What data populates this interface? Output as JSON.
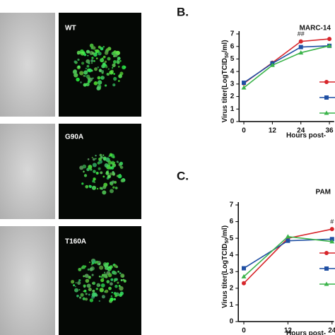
{
  "images": {
    "labels": [
      "WT",
      "G90A",
      "T160A"
    ]
  },
  "chart_data": [
    {
      "type": "line",
      "panel": "B.",
      "title": "MARC-14",
      "xlabel": "Hours post-",
      "ylabel": [
        "Virus titer(LogTCID",
        "50",
        "/ml)"
      ],
      "x": [
        0,
        12,
        24,
        36
      ],
      "xlim": [
        -2,
        38
      ],
      "xticks": [
        0,
        12,
        24,
        36
      ],
      "ylim": [
        0,
        7
      ],
      "yticks": [
        0,
        1,
        2,
        3,
        4,
        5,
        6,
        7
      ],
      "series": [
        {
          "color": "#d7262b",
          "marker": "circle",
          "values": [
            3.05,
            4.7,
            6.4,
            6.6
          ]
        },
        {
          "color": "#1f4fa3",
          "marker": "square",
          "values": [
            3.1,
            4.65,
            5.95,
            6.05
          ]
        },
        {
          "color": "#3cb44b",
          "marker": "triangle",
          "values": [
            2.7,
            4.5,
            5.5,
            6.05
          ]
        }
      ],
      "annotations": [
        {
          "text": "##",
          "x": 24
        }
      ]
    },
    {
      "type": "line",
      "panel": "C.",
      "title": "PAM",
      "xlabel": "Hours post-",
      "ylabel": [
        "Virus titer(LogTCID",
        "50",
        "/ml)"
      ],
      "x": [
        0,
        12,
        24
      ],
      "xlim": [
        -1.5,
        24.5
      ],
      "xticks": [
        0,
        12,
        24
      ],
      "ylim": [
        0,
        7
      ],
      "yticks": [
        0,
        1,
        2,
        3,
        4,
        5,
        6,
        7
      ],
      "series": [
        {
          "color": "#d7262b",
          "marker": "circle",
          "values": [
            2.3,
            5.0,
            5.55
          ]
        },
        {
          "color": "#1f4fa3",
          "marker": "square",
          "values": [
            3.2,
            4.85,
            4.95
          ]
        },
        {
          "color": "#3cb44b",
          "marker": "triangle",
          "values": [
            2.7,
            5.1,
            4.8
          ]
        }
      ],
      "annotations": [
        {
          "text": "#",
          "x": 24
        }
      ]
    }
  ]
}
